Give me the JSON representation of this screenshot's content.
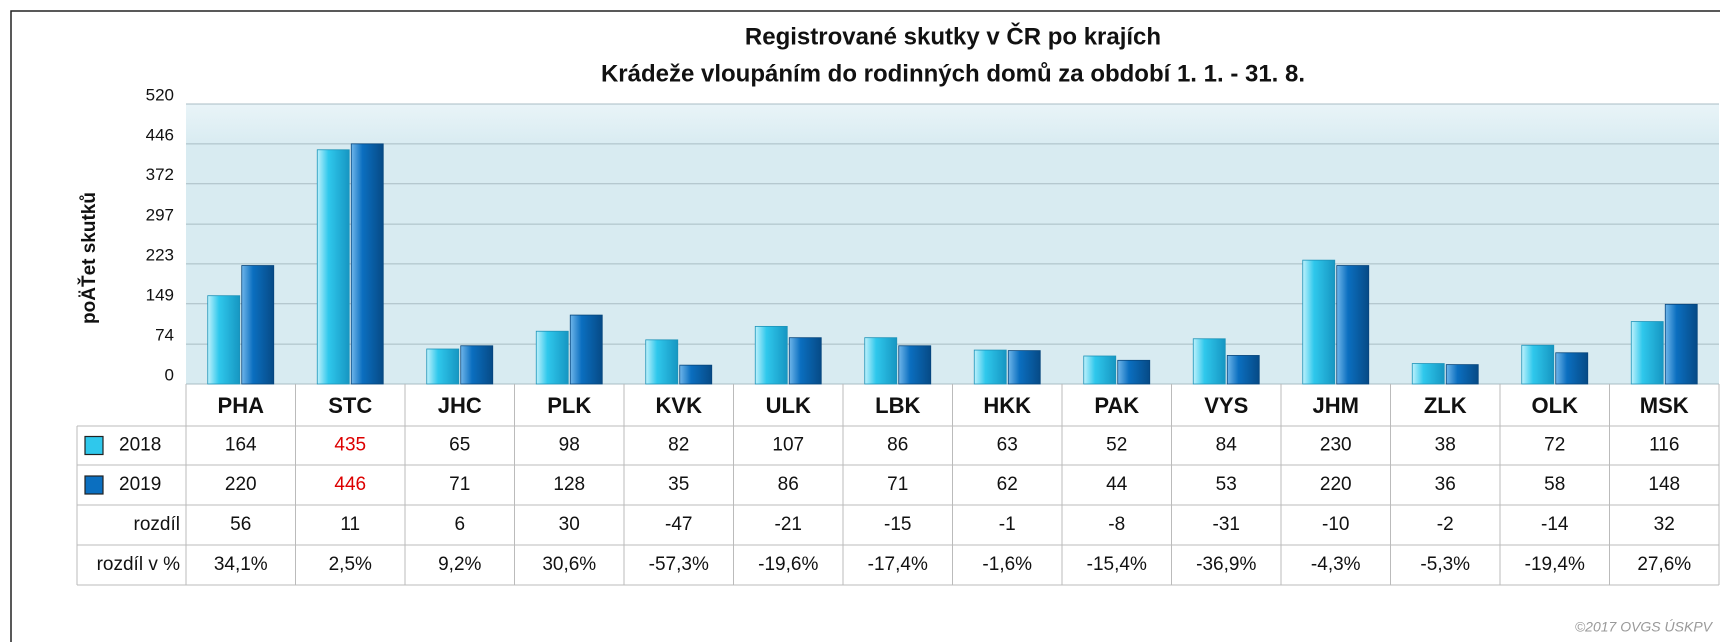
{
  "chart_data": {
    "type": "bar",
    "title": "Registrované skutky v ČR po krajích",
    "subtitle": "Krádeže vloupáním do rodinných domů za období 1. 1. - 31. 8.",
    "y_label": "poÄŤet skutků",
    "categories": [
      "PHA",
      "STC",
      "JHC",
      "PLK",
      "KVK",
      "ULK",
      "LBK",
      "HKK",
      "PAK",
      "VYS",
      "JHM",
      "ZLK",
      "OLK",
      "MSK"
    ],
    "series": [
      {
        "name": "2018",
        "color": "#2fc8ec",
        "values": [
          164,
          435,
          65,
          98,
          82,
          107,
          86,
          63,
          52,
          84,
          230,
          38,
          72,
          116
        ]
      },
      {
        "name": "2019",
        "color": "#0b6fc0",
        "values": [
          220,
          446,
          71,
          128,
          35,
          86,
          71,
          62,
          44,
          53,
          220,
          36,
          58,
          148
        ]
      }
    ],
    "table_rows": [
      {
        "name": "rozdíl",
        "values": [
          56,
          11,
          6,
          30,
          -47,
          -21,
          -15,
          -1,
          -8,
          -31,
          -10,
          -2,
          -14,
          32
        ]
      },
      {
        "name": "rozdíl v %",
        "values": [
          34.1,
          2.5,
          9.2,
          30.6,
          -57.3,
          -19.6,
          -17.4,
          -1.6,
          -15.4,
          -36.9,
          -4.3,
          -5.3,
          -19.4,
          27.6
        ],
        "value_labels": [
          "34,1%",
          "2,5%",
          "9,2%",
          "30,6%",
          "-57,3%",
          "-19,6%",
          "-17,4%",
          "-1,6%",
          "-15,4%",
          "-36,9%",
          "-4,3%",
          "-5,3%",
          "-19,4%",
          "27,6%"
        ]
      }
    ],
    "highlight_category": "STC",
    "highlight_color": "#dd0000",
    "ylim": [
      0,
      520
    ],
    "yticks": [
      0,
      74,
      149,
      223,
      297,
      372,
      446,
      520
    ],
    "grid": true,
    "credit": "©2017 OVGS ÚSKPV"
  }
}
